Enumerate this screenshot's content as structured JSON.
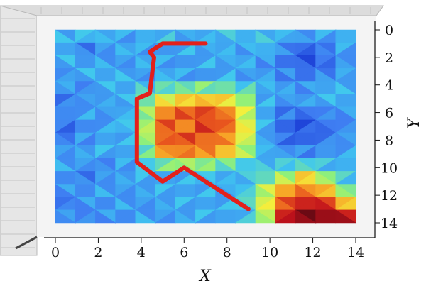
{
  "chart_data": {
    "type": "heatmap",
    "title": "",
    "xlabel": "X",
    "ylabel": "Y",
    "x_ticks": [
      "0",
      "2",
      "4",
      "6",
      "8",
      "10",
      "12",
      "14"
    ],
    "y_ticks": [
      "0",
      "2",
      "4",
      "6",
      "8",
      "10",
      "12",
      "14"
    ],
    "xlim": [
      0,
      14
    ],
    "ylim": [
      0,
      14
    ],
    "y_axis_inverted": true,
    "grid": false,
    "colormap": [
      "#0a1e8c",
      "#1b3dd6",
      "#3f7ef2",
      "#3fc7f0",
      "#8ff07a",
      "#f4ef3c",
      "#f7a226",
      "#e8551e",
      "#c2121c",
      "#6b0a14"
    ],
    "grid_size": [
      15,
      15
    ],
    "values": [
      [
        0.3,
        0.32,
        0.3,
        0.28,
        0.3,
        0.32,
        0.28,
        0.3,
        0.32,
        0.3,
        0.32,
        0.3,
        0.26,
        0.28,
        0.3
      ],
      [
        0.28,
        0.22,
        0.26,
        0.3,
        0.28,
        0.26,
        0.3,
        0.28,
        0.3,
        0.28,
        0.3,
        0.24,
        0.18,
        0.22,
        0.28
      ],
      [
        0.3,
        0.26,
        0.28,
        0.26,
        0.3,
        0.28,
        0.26,
        0.3,
        0.28,
        0.3,
        0.26,
        0.2,
        0.16,
        0.2,
        0.26
      ],
      [
        0.26,
        0.3,
        0.28,
        0.3,
        0.26,
        0.3,
        0.28,
        0.26,
        0.3,
        0.26,
        0.28,
        0.24,
        0.2,
        0.24,
        0.28
      ],
      [
        0.28,
        0.24,
        0.3,
        0.28,
        0.34,
        0.38,
        0.4,
        0.42,
        0.4,
        0.36,
        0.3,
        0.28,
        0.26,
        0.28,
        0.3
      ],
      [
        0.22,
        0.26,
        0.28,
        0.3,
        0.4,
        0.55,
        0.6,
        0.62,
        0.58,
        0.45,
        0.3,
        0.26,
        0.28,
        0.3,
        0.28
      ],
      [
        0.24,
        0.28,
        0.26,
        0.3,
        0.45,
        0.7,
        0.78,
        0.8,
        0.72,
        0.52,
        0.28,
        0.22,
        0.2,
        0.24,
        0.26
      ],
      [
        0.2,
        0.24,
        0.28,
        0.32,
        0.48,
        0.78,
        0.7,
        0.82,
        0.76,
        0.55,
        0.3,
        0.18,
        0.16,
        0.2,
        0.24
      ],
      [
        0.22,
        0.26,
        0.28,
        0.3,
        0.46,
        0.76,
        0.8,
        0.74,
        0.7,
        0.52,
        0.28,
        0.2,
        0.18,
        0.22,
        0.26
      ],
      [
        0.26,
        0.28,
        0.3,
        0.28,
        0.4,
        0.68,
        0.72,
        0.7,
        0.62,
        0.48,
        0.3,
        0.26,
        0.24,
        0.26,
        0.28
      ],
      [
        0.28,
        0.26,
        0.24,
        0.28,
        0.34,
        0.42,
        0.46,
        0.44,
        0.4,
        0.34,
        0.32,
        0.34,
        0.36,
        0.32,
        0.3
      ],
      [
        0.24,
        0.22,
        0.26,
        0.28,
        0.3,
        0.28,
        0.3,
        0.32,
        0.3,
        0.32,
        0.38,
        0.48,
        0.6,
        0.46,
        0.34
      ],
      [
        0.26,
        0.24,
        0.28,
        0.26,
        0.28,
        0.3,
        0.28,
        0.3,
        0.28,
        0.34,
        0.5,
        0.66,
        0.72,
        0.64,
        0.44
      ],
      [
        0.22,
        0.26,
        0.24,
        0.28,
        0.26,
        0.28,
        0.3,
        0.28,
        0.3,
        0.36,
        0.54,
        0.78,
        0.86,
        0.84,
        0.62
      ],
      [
        0.26,
        0.24,
        0.26,
        0.24,
        0.28,
        0.26,
        0.28,
        0.3,
        0.28,
        0.32,
        0.48,
        0.88,
        0.98,
        0.94,
        0.9
      ]
    ],
    "path": {
      "color": "#e3201b",
      "points": [
        [
          7,
          1
        ],
        [
          5,
          1
        ],
        [
          4.4,
          1.6
        ],
        [
          4.6,
          2
        ],
        [
          4.4,
          4.6
        ],
        [
          3.8,
          5
        ],
        [
          3.8,
          9.6
        ],
        [
          5,
          11
        ],
        [
          6,
          10
        ],
        [
          9,
          13
        ]
      ]
    }
  }
}
